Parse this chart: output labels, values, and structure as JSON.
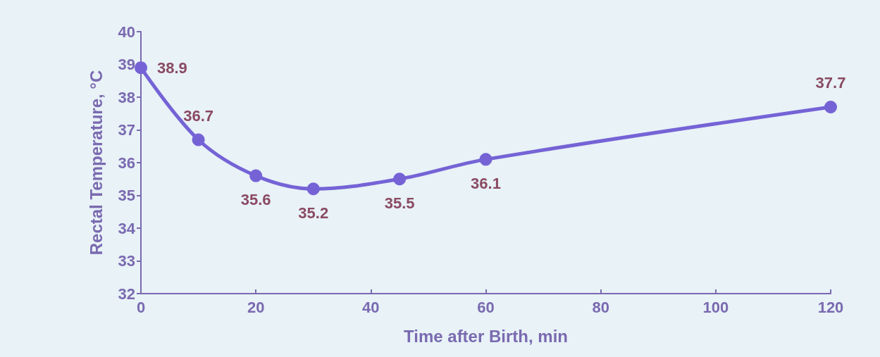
{
  "chart_data": {
    "type": "line",
    "xlabel": "Time after Birth, min",
    "ylabel": "Rectal Temperature, °C",
    "x": [
      0,
      10,
      20,
      30,
      45,
      60,
      120
    ],
    "series": [
      {
        "color": "#7563d6",
        "values": [
          38.9,
          36.7,
          35.6,
          35.2,
          35.5,
          36.1,
          37.7
        ]
      }
    ],
    "xlim": [
      0,
      120
    ],
    "xticks": [
      0,
      20,
      40,
      60,
      80,
      100,
      120
    ],
    "ylim": [
      32,
      40
    ],
    "yticks": [
      32,
      33,
      34,
      35,
      36,
      37,
      38,
      39,
      40
    ],
    "data_labels": true,
    "marker": "circle",
    "line_style": "solid"
  }
}
